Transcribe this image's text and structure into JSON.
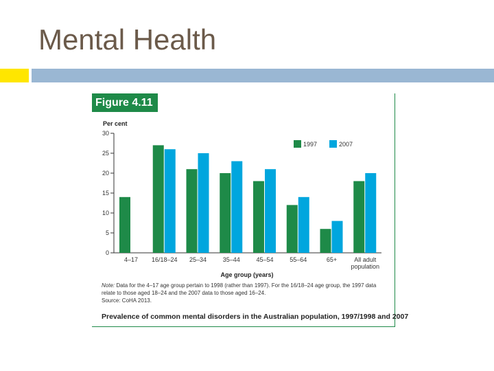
{
  "slide": {
    "title": "Mental Health",
    "colors": {
      "title": "#6b5a4a",
      "accent_yellow": "#ffe600",
      "accent_bar": "#9ab7d3",
      "figure_green": "#1e8a48"
    }
  },
  "figure": {
    "badge": "Figure 4.11",
    "note_label": "Note:",
    "note_text": "Data for the 4–17 age group pertain to 1998 (rather than 1997). For the 16/18–24 age group, the 1997 data relate to those aged 18–24 and the 2007 data to those aged 16–24.",
    "source": "Source: CoHA 2013.",
    "caption": "Prevalence of common mental disorders in the Australian population, 1997/1998 and 2007"
  },
  "chart_data": {
    "type": "bar",
    "ylabel": "Per cent",
    "xlabel": "Age group (years)",
    "ylim": [
      0,
      30
    ],
    "yticks": [
      0,
      5,
      10,
      15,
      20,
      25,
      30
    ],
    "categories": [
      "4–17",
      "16/18–24",
      "25–34",
      "35–44",
      "45–54",
      "55–64",
      "65+",
      "All adult population"
    ],
    "series": [
      {
        "name": "1997",
        "color": "#1e8a48",
        "values": [
          14,
          27,
          21,
          20,
          18,
          12,
          6,
          18
        ]
      },
      {
        "name": "2007",
        "color": "#00a6de",
        "values": [
          null,
          26,
          25,
          23,
          21,
          14,
          8,
          20
        ]
      }
    ],
    "legend": "top-right",
    "grid": false
  }
}
